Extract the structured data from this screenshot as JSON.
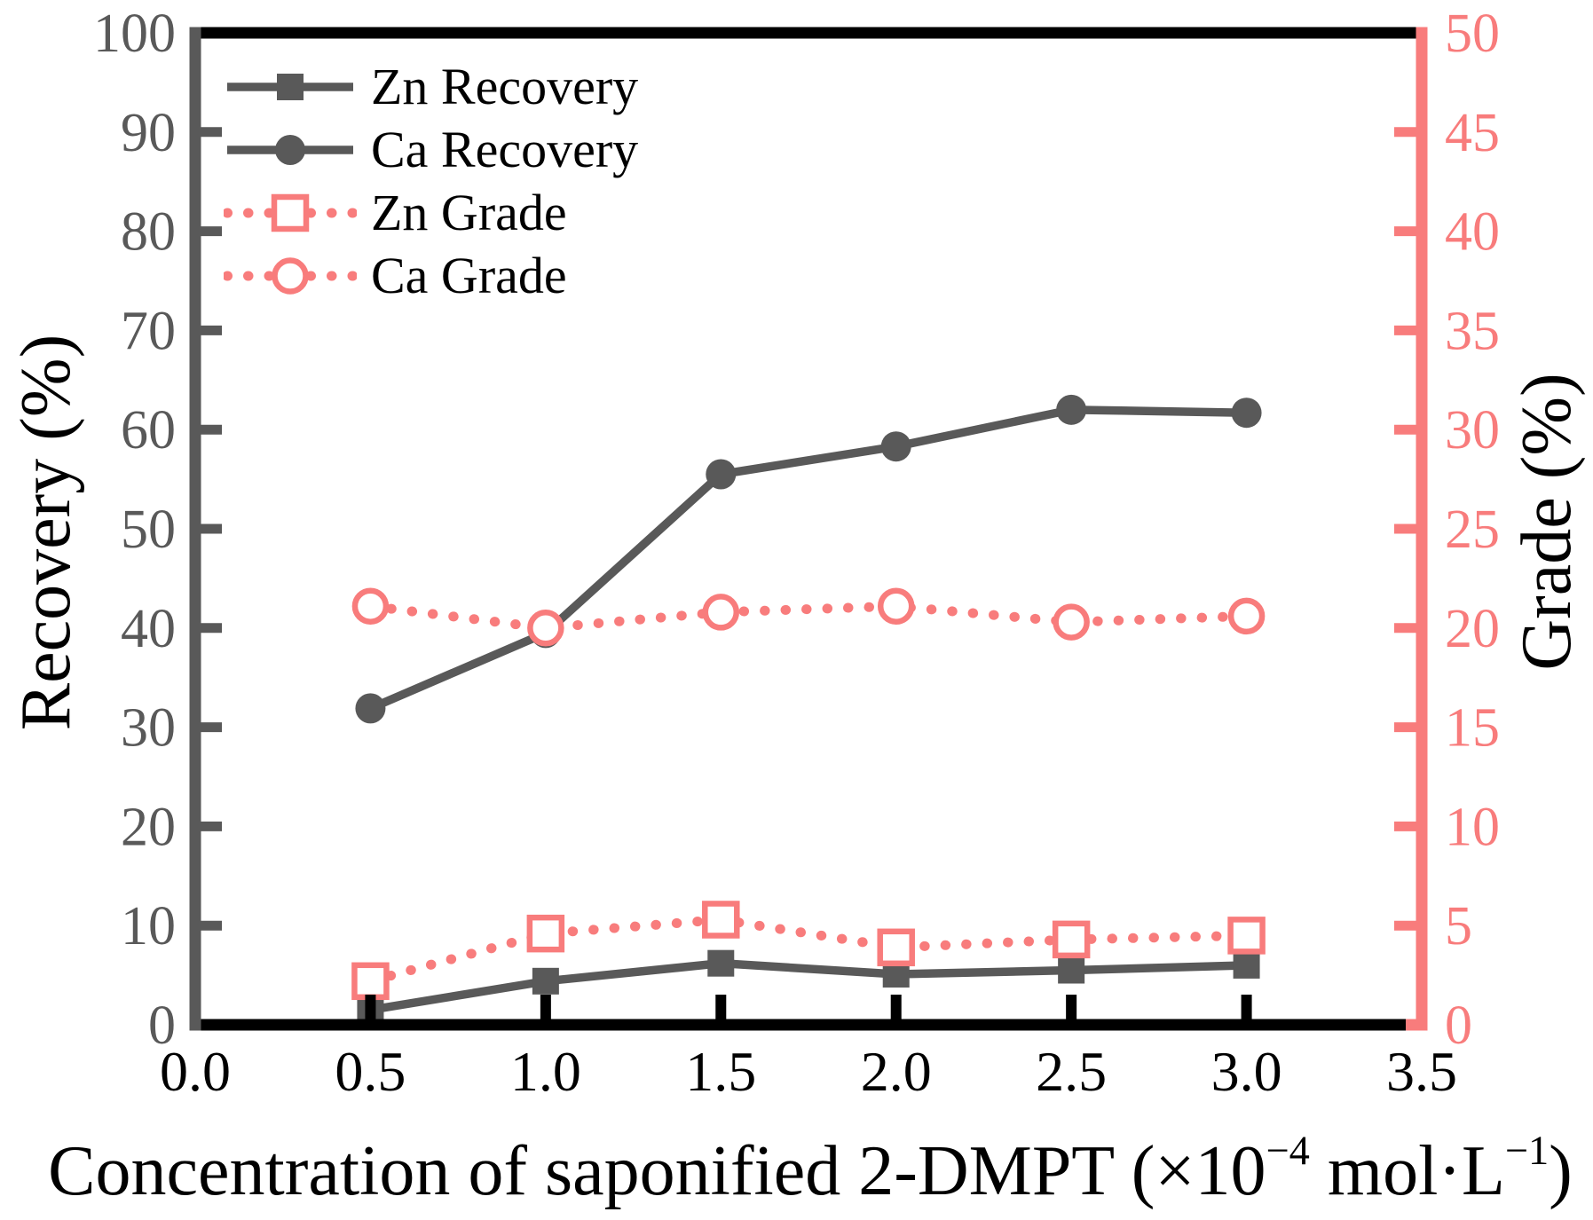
{
  "figure": {
    "background": "#ffffff"
  },
  "chart_data": {
    "type": "line",
    "x": [
      0.5,
      1.0,
      1.5,
      2.0,
      2.5,
      3.0
    ],
    "series": [
      {
        "name": "Zn Recovery",
        "axis": "left",
        "color": "#595959",
        "line": "solid",
        "marker": "filled-square",
        "values": [
          1.5,
          4.4,
          6.2,
          5.1,
          5.5,
          6.0
        ]
      },
      {
        "name": "Ca Recovery",
        "axis": "left",
        "color": "#595959",
        "line": "solid",
        "marker": "filled-circle",
        "values": [
          31.9,
          39.5,
          55.5,
          58.3,
          62.0,
          61.7
        ]
      },
      {
        "name": "Zn Grade",
        "axis": "right",
        "color": "#f87c7c",
        "line": "dotted",
        "marker": "open-square",
        "values": [
          2.2,
          4.6,
          5.3,
          3.9,
          4.3,
          4.5
        ]
      },
      {
        "name": "Ca Grade",
        "axis": "right",
        "color": "#f87c7c",
        "line": "dotted",
        "marker": "open-circle",
        "values": [
          21.1,
          20.0,
          20.8,
          21.1,
          20.3,
          20.6
        ]
      }
    ],
    "axes": {
      "left": {
        "label": "Recovery (%)",
        "min": 0,
        "max": 100,
        "tick_labels": [
          "0",
          "10",
          "20",
          "30",
          "40",
          "50",
          "60",
          "70",
          "80",
          "90",
          "100"
        ],
        "color": "#595959",
        "label_color": "#000000"
      },
      "right": {
        "label": "Grade (%)",
        "min": 0,
        "max": 50,
        "tick_labels": [
          "0",
          "5",
          "10",
          "15",
          "20",
          "25",
          "30",
          "35",
          "40",
          "45",
          "50"
        ],
        "color": "#f87c7c",
        "label_color": "#f87c7c"
      },
      "bottom": {
        "min": 0,
        "max": 3.5,
        "tick_labels": [
          "0.0",
          "0.5",
          "1.0",
          "1.5",
          "2.0",
          "2.5",
          "3.0",
          "3.5"
        ],
        "color": "#000000",
        "label_parts": {
          "p1": "Concentration of saponified 2-DMPT (×10",
          "sup1": "−4",
          "p2": " mol·L",
          "sup2": "−1",
          "p3": ")"
        }
      }
    },
    "legend": {
      "position": "top-left",
      "entries": [
        "Zn Recovery",
        "Ca Recovery",
        "Zn Grade",
        "Ca Grade"
      ]
    },
    "grid": false
  }
}
